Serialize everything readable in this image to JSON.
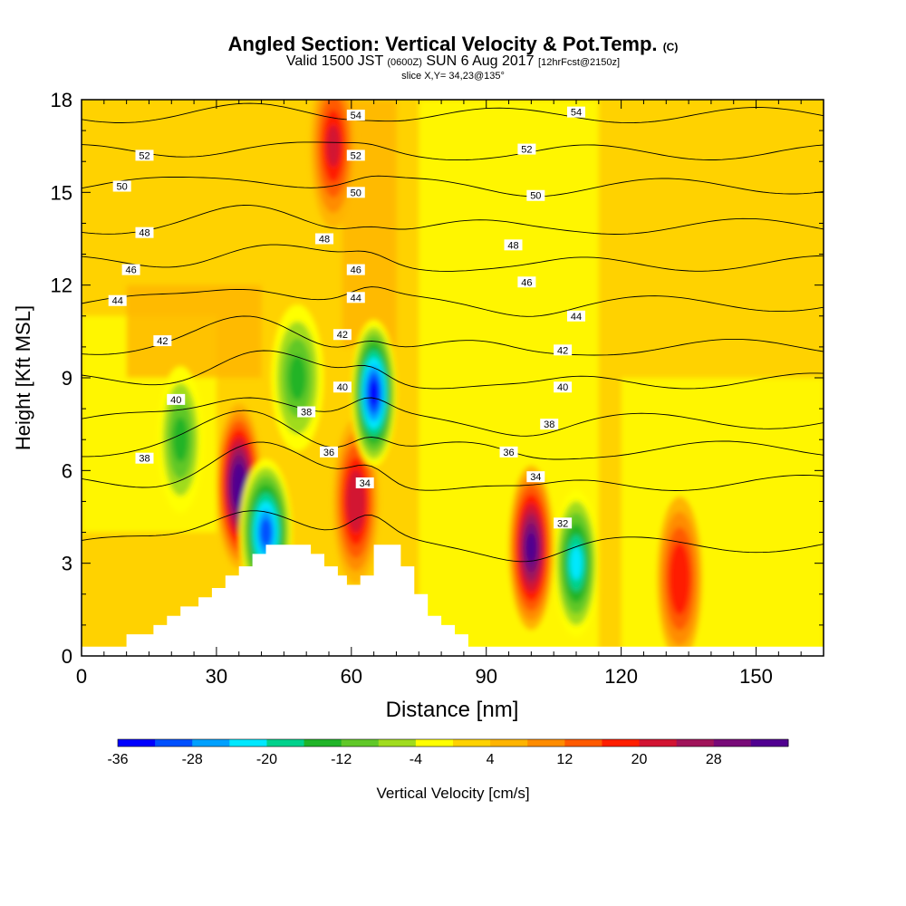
{
  "header": {
    "title": "Angled Section: Vertical Velocity & Pot.Temp.",
    "title_tag": "(C)",
    "valid_lead": "Valid 1500 JST",
    "valid_utc": "(0600Z)",
    "valid_date": "SUN 6 Aug 2017",
    "forecast": "[12hrFcst@2150z]",
    "slice": "slice X,Y= 34,23@135°"
  },
  "chart_data": {
    "type": "heatmap",
    "xlabel": "Distance [nm]",
    "ylabel": "Height [Kft MSL]",
    "xlim": [
      0,
      165
    ],
    "ylim": [
      0,
      18
    ],
    "xticks": [
      0,
      30,
      60,
      90,
      120,
      150
    ],
    "yticks": [
      0,
      3,
      6,
      9,
      12,
      15,
      18
    ],
    "colorbar": {
      "label": "Vertical Velocity [cm/s]",
      "ticks": [
        -36,
        -28,
        -20,
        -12,
        -4,
        4,
        12,
        20,
        28
      ],
      "colors": [
        "#0000ff",
        "#0050ff",
        "#00a0ff",
        "#00e8ff",
        "#00d28c",
        "#20b428",
        "#60c828",
        "#a0dc1e",
        "#ffff00",
        "#ffd200",
        "#ffb400",
        "#ff8c00",
        "#ff5a00",
        "#ff1e00",
        "#d21432",
        "#a0145a",
        "#780a78",
        "#500090"
      ]
    },
    "velocity_features": [
      {
        "x": 35,
        "y": 5.5,
        "w": 34,
        "type": "updraft"
      },
      {
        "x": 41,
        "y": 4.0,
        "w": -30,
        "type": "downdraft"
      },
      {
        "x": 48,
        "y": 9.0,
        "w": -14,
        "type": "downdraft"
      },
      {
        "x": 56,
        "y": 16.5,
        "w": 20,
        "type": "updraft"
      },
      {
        "x": 61,
        "y": 5.0,
        "w": 22,
        "type": "updraft"
      },
      {
        "x": 65,
        "y": 8.5,
        "w": -34,
        "type": "downdraft"
      },
      {
        "x": 100,
        "y": 3.5,
        "w": 32,
        "type": "updraft"
      },
      {
        "x": 110,
        "y": 3.0,
        "w": -22,
        "type": "downdraft"
      },
      {
        "x": 22,
        "y": 7.0,
        "w": -14,
        "type": "downdraft"
      },
      {
        "x": 133,
        "y": 2.5,
        "w": 18,
        "type": "updraft"
      }
    ],
    "isentropes": [
      {
        "theta": 32,
        "base_height": 3.6
      },
      {
        "theta": 34,
        "base_height": 5.6
      },
      {
        "theta": 36,
        "base_height": 6.7
      },
      {
        "theta": 38,
        "base_height": 7.6
      },
      {
        "theta": 40,
        "base_height": 8.9
      },
      {
        "theta": 42,
        "base_height": 10.0
      },
      {
        "theta": 44,
        "base_height": 11.4
      },
      {
        "theta": 46,
        "base_height": 12.7
      },
      {
        "theta": 48,
        "base_height": 13.9
      },
      {
        "theta": 50,
        "base_height": 15.2
      },
      {
        "theta": 52,
        "base_height": 16.3
      },
      {
        "theta": 54,
        "base_height": 17.5
      }
    ],
    "contour_labels": [
      {
        "text": "54",
        "x": 61,
        "y": 17.5
      },
      {
        "text": "54",
        "x": 110,
        "y": 17.6
      },
      {
        "text": "52",
        "x": 14,
        "y": 16.2
      },
      {
        "text": "52",
        "x": 61,
        "y": 16.2
      },
      {
        "text": "52",
        "x": 99,
        "y": 16.4
      },
      {
        "text": "50",
        "x": 9,
        "y": 15.2
      },
      {
        "text": "50",
        "x": 61,
        "y": 15.0
      },
      {
        "text": "50",
        "x": 101,
        "y": 14.9
      },
      {
        "text": "48",
        "x": 14,
        "y": 13.7
      },
      {
        "text": "48",
        "x": 54,
        "y": 13.5
      },
      {
        "text": "48",
        "x": 96,
        "y": 13.3
      },
      {
        "text": "46",
        "x": 11,
        "y": 12.5
      },
      {
        "text": "46",
        "x": 61,
        "y": 12.5
      },
      {
        "text": "46",
        "x": 99,
        "y": 12.1
      },
      {
        "text": "44",
        "x": 8,
        "y": 11.5
      },
      {
        "text": "44",
        "x": 61,
        "y": 11.6
      },
      {
        "text": "44",
        "x": 110,
        "y": 11.0
      },
      {
        "text": "42",
        "x": 18,
        "y": 10.2
      },
      {
        "text": "42",
        "x": 58,
        "y": 10.4
      },
      {
        "text": "42",
        "x": 107,
        "y": 9.9
      },
      {
        "text": "40",
        "x": 21,
        "y": 8.3
      },
      {
        "text": "40",
        "x": 58,
        "y": 8.7
      },
      {
        "text": "40",
        "x": 107,
        "y": 8.7
      },
      {
        "text": "38",
        "x": 14,
        "y": 6.4
      },
      {
        "text": "38",
        "x": 50,
        "y": 7.9
      },
      {
        "text": "38",
        "x": 104,
        "y": 7.5
      },
      {
        "text": "36",
        "x": 55,
        "y": 6.6
      },
      {
        "text": "36",
        "x": 95,
        "y": 6.6
      },
      {
        "text": "34",
        "x": 63,
        "y": 5.6
      },
      {
        "text": "34",
        "x": 101,
        "y": 5.8
      },
      {
        "text": "32",
        "x": 107,
        "y": 4.3
      }
    ],
    "terrain": [
      [
        0,
        0.3
      ],
      [
        10,
        0.3
      ],
      [
        10,
        0.7
      ],
      [
        16,
        0.7
      ],
      [
        16,
        1.0
      ],
      [
        19,
        1.0
      ],
      [
        19,
        1.3
      ],
      [
        22,
        1.3
      ],
      [
        22,
        1.6
      ],
      [
        26,
        1.6
      ],
      [
        26,
        1.9
      ],
      [
        29,
        1.9
      ],
      [
        29,
        2.2
      ],
      [
        32,
        2.2
      ],
      [
        32,
        2.6
      ],
      [
        35,
        2.6
      ],
      [
        35,
        2.9
      ],
      [
        38,
        2.9
      ],
      [
        38,
        3.3
      ],
      [
        41,
        3.3
      ],
      [
        41,
        3.6
      ],
      [
        51,
        3.6
      ],
      [
        51,
        3.3
      ],
      [
        54,
        3.3
      ],
      [
        54,
        2.9
      ],
      [
        57,
        2.9
      ],
      [
        57,
        2.6
      ],
      [
        59,
        2.6
      ],
      [
        59,
        2.3
      ],
      [
        62,
        2.3
      ],
      [
        62,
        2.6
      ],
      [
        65,
        2.6
      ],
      [
        65,
        3.6
      ],
      [
        71,
        3.6
      ],
      [
        71,
        2.9
      ],
      [
        74,
        2.9
      ],
      [
        74,
        2.0
      ],
      [
        77,
        2.0
      ],
      [
        77,
        1.3
      ],
      [
        80,
        1.3
      ],
      [
        80,
        1.0
      ],
      [
        83,
        1.0
      ],
      [
        83,
        0.7
      ],
      [
        86,
        0.7
      ],
      [
        86,
        0.3
      ],
      [
        165,
        0.3
      ]
    ]
  }
}
